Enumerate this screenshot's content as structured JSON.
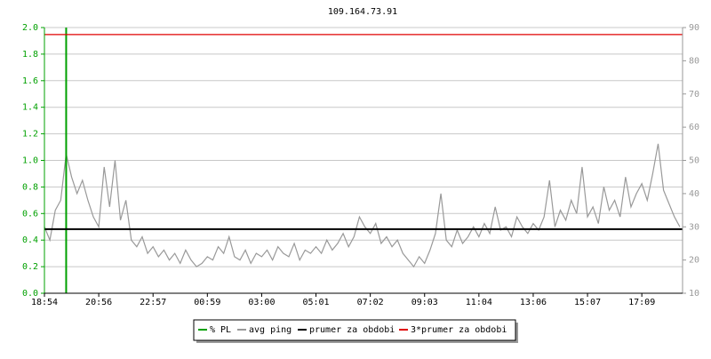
{
  "chart_data": {
    "type": "line",
    "title": "109.164.73.91",
    "xlim": [
      0,
      117.5
    ],
    "xticks": [
      {
        "value": 0,
        "label": "18:54"
      },
      {
        "value": 10,
        "label": "20:56"
      },
      {
        "value": 20,
        "label": "22:57"
      },
      {
        "value": 30,
        "label": "00:59"
      },
      {
        "value": 40,
        "label": "03:00"
      },
      {
        "value": 50,
        "label": "05:01"
      },
      {
        "value": 60,
        "label": "07:02"
      },
      {
        "value": 70,
        "label": "09:03"
      },
      {
        "value": 80,
        "label": "11:04"
      },
      {
        "value": 90,
        "label": "13:06"
      },
      {
        "value": 100,
        "label": "15:07"
      },
      {
        "value": 110,
        "label": "17:09"
      }
    ],
    "ylim": [
      0,
      2
    ],
    "yticks": [
      {
        "value": 0,
        "label": "0.0"
      },
      0.2,
      0.4,
      0.6,
      0.8,
      {
        "value": 1,
        "label": "1.0"
      },
      1.2,
      1.4,
      1.6,
      1.8,
      {
        "value": 2,
        "label": "2.0"
      }
    ],
    "y2lim": [
      10,
      90
    ],
    "y2ticks": [
      10,
      20,
      30,
      40,
      50,
      60,
      70,
      80,
      90
    ],
    "grid": true,
    "legend": "bottom",
    "series": [
      {
        "name": "% PL",
        "color": "#00a000",
        "style": "impulse",
        "values": [
          0,
          0,
          0,
          0,
          2,
          0,
          0,
          0,
          0,
          0,
          0,
          0,
          0,
          0,
          0,
          0,
          0,
          0,
          0,
          0,
          0,
          0,
          0,
          0,
          0,
          0,
          0,
          0,
          0,
          0,
          0,
          0,
          0,
          0,
          0,
          0,
          0,
          0,
          0,
          0,
          0,
          0,
          0,
          0,
          0,
          0,
          0,
          0,
          0,
          0,
          0,
          0,
          0,
          0,
          0,
          0,
          0,
          0,
          0,
          0,
          0,
          0,
          0,
          0,
          0,
          0,
          0,
          0,
          0,
          0,
          0,
          0,
          0,
          0,
          0,
          0,
          0,
          0,
          0,
          0,
          0,
          0,
          0,
          0,
          0,
          0,
          0,
          0,
          0,
          0,
          0,
          0,
          0,
          0,
          0,
          0,
          0,
          0,
          0,
          0,
          0,
          0,
          0,
          0,
          0,
          0,
          0,
          0,
          0,
          0,
          0,
          0,
          0,
          0,
          0,
          0,
          0,
          0
        ]
      },
      {
        "name": "avg ping",
        "color": "#999999",
        "axis": "y2",
        "style": "line",
        "values": [
          30,
          26,
          35,
          38,
          52,
          45,
          40,
          44,
          38,
          33,
          30,
          48,
          36,
          50,
          32,
          38,
          26,
          24,
          27,
          22,
          24,
          21,
          23,
          20,
          22,
          19,
          23,
          20,
          18,
          19,
          21,
          20,
          24,
          22,
          27,
          21,
          20,
          23,
          19,
          22,
          21,
          23,
          20,
          24,
          22,
          21,
          25,
          20,
          23,
          22,
          24,
          22,
          26,
          23,
          25,
          28,
          24,
          27,
          33,
          30,
          28,
          31,
          25,
          27,
          24,
          26,
          22,
          20,
          18,
          21,
          19,
          23,
          28,
          40,
          26,
          24,
          29,
          25,
          27,
          30,
          27,
          31,
          28,
          36,
          29,
          30,
          27,
          33,
          30,
          28,
          31,
          29,
          33,
          44,
          30,
          35,
          32,
          38,
          34,
          48,
          33,
          36,
          31,
          42,
          35,
          38,
          33,
          45,
          36,
          40,
          43,
          38,
          46,
          55,
          41,
          37,
          33,
          30
        ]
      },
      {
        "name": "prumer za obdobi",
        "color": "#000000",
        "axis": "y2",
        "style": "hline",
        "values": [
          29.3
        ]
      },
      {
        "name": "3*prumer za obdobi",
        "color": "#e00000",
        "axis": "y2",
        "style": "hline",
        "values": [
          87.9
        ]
      }
    ]
  }
}
